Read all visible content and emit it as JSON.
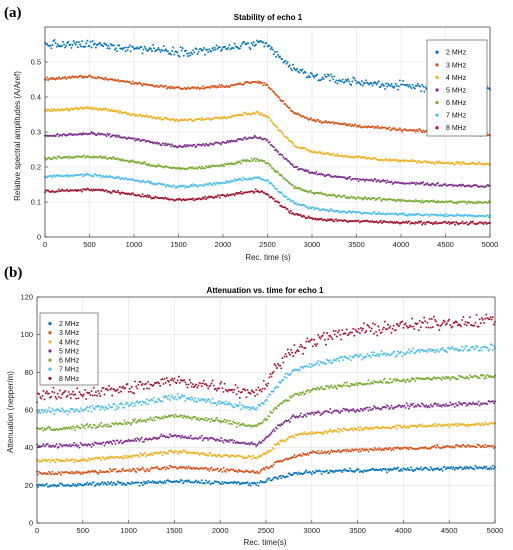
{
  "chart_data": [
    {
      "panel": "(a)",
      "type": "scatter",
      "title": "Stability of echo 1",
      "xlabel": "Rec. time (s)",
      "ylabel": "Relative spectral amplitudes (A/Aref)",
      "xlim": [
        0,
        5000
      ],
      "ylim": [
        0,
        0.6
      ],
      "xticks": [
        0,
        500,
        1000,
        1500,
        2000,
        2500,
        3000,
        3500,
        4000,
        4500,
        5000
      ],
      "yticks": [
        0,
        0.1,
        0.2,
        0.3,
        0.4,
        0.5
      ],
      "grid": true,
      "legend_position": "top-right",
      "x": [
        0,
        250,
        500,
        750,
        1000,
        1250,
        1500,
        1750,
        2000,
        2250,
        2400,
        2500,
        2650,
        2800,
        3000,
        3250,
        3500,
        3750,
        4000,
        4250,
        4500,
        4750,
        5000
      ],
      "series": [
        {
          "name": "2 MHz",
          "color": "#0072bd",
          "noise": 0.006,
          "values": [
            0.55,
            0.548,
            0.55,
            0.545,
            0.54,
            0.536,
            0.53,
            0.532,
            0.538,
            0.548,
            0.552,
            0.545,
            0.51,
            0.478,
            0.46,
            0.45,
            0.443,
            0.437,
            0.432,
            0.428,
            0.424,
            0.421,
            0.418
          ]
        },
        {
          "name": "3 MHz",
          "color": "#d95319",
          "noise": 0.002,
          "values": [
            0.452,
            0.455,
            0.458,
            0.45,
            0.44,
            0.432,
            0.425,
            0.426,
            0.43,
            0.44,
            0.443,
            0.433,
            0.392,
            0.355,
            0.335,
            0.325,
            0.318,
            0.312,
            0.306,
            0.302,
            0.298,
            0.295,
            0.292
          ]
        },
        {
          "name": "4 MHz",
          "color": "#edb120",
          "noise": 0.002,
          "values": [
            0.362,
            0.365,
            0.368,
            0.362,
            0.35,
            0.34,
            0.333,
            0.336,
            0.342,
            0.352,
            0.355,
            0.344,
            0.3,
            0.262,
            0.245,
            0.235,
            0.228,
            0.222,
            0.218,
            0.215,
            0.212,
            0.21,
            0.208
          ]
        },
        {
          "name": "5 MHz",
          "color": "#7e2f8e",
          "noise": 0.002,
          "values": [
            0.288,
            0.292,
            0.295,
            0.29,
            0.28,
            0.268,
            0.258,
            0.262,
            0.27,
            0.282,
            0.285,
            0.275,
            0.235,
            0.2,
            0.183,
            0.173,
            0.165,
            0.16,
            0.155,
            0.152,
            0.149,
            0.147,
            0.145
          ]
        },
        {
          "name": "6 MHz",
          "color": "#77ac30",
          "noise": 0.002,
          "values": [
            0.224,
            0.228,
            0.23,
            0.225,
            0.215,
            0.203,
            0.195,
            0.198,
            0.205,
            0.218,
            0.222,
            0.212,
            0.175,
            0.142,
            0.127,
            0.118,
            0.112,
            0.108,
            0.105,
            0.102,
            0.1,
            0.099,
            0.098
          ]
        },
        {
          "name": "7 MHz",
          "color": "#4dbeee",
          "noise": 0.002,
          "values": [
            0.172,
            0.176,
            0.178,
            0.172,
            0.163,
            0.152,
            0.144,
            0.147,
            0.155,
            0.166,
            0.17,
            0.16,
            0.125,
            0.096,
            0.083,
            0.075,
            0.07,
            0.067,
            0.065,
            0.063,
            0.062,
            0.061,
            0.06
          ]
        },
        {
          "name": "8 MHz",
          "color": "#a2142f",
          "noise": 0.002,
          "values": [
            0.13,
            0.133,
            0.136,
            0.13,
            0.122,
            0.112,
            0.106,
            0.11,
            0.117,
            0.128,
            0.132,
            0.122,
            0.09,
            0.065,
            0.053,
            0.048,
            0.045,
            0.043,
            0.042,
            0.041,
            0.04,
            0.04,
            0.039
          ]
        }
      ]
    },
    {
      "panel": "(b)",
      "type": "scatter",
      "title": "Attenuation vs. time for echo 1",
      "xlabel": "Rec. time(s)",
      "ylabel": "Attenuation (nepper/m)",
      "xlim": [
        0,
        5000
      ],
      "ylim": [
        0,
        120
      ],
      "xticks": [
        0,
        500,
        1000,
        1500,
        2000,
        2500,
        3000,
        3500,
        4000,
        4500,
        5000
      ],
      "yticks": [
        0,
        20,
        40,
        60,
        80,
        100,
        120
      ],
      "grid": true,
      "legend_position": "top-left",
      "x": [
        0,
        250,
        500,
        750,
        1000,
        1250,
        1500,
        1750,
        2000,
        2250,
        2400,
        2500,
        2650,
        2800,
        3000,
        3250,
        3500,
        3750,
        4000,
        4250,
        4500,
        4750,
        5000
      ],
      "series": [
        {
          "name": "2 MHz",
          "color": "#0072bd",
          "noise": 0.5,
          "values": [
            20,
            20,
            20.5,
            20.8,
            21,
            21.5,
            22,
            21.8,
            21.5,
            21,
            21,
            22,
            24.5,
            26,
            27,
            27.5,
            28,
            28.2,
            28.5,
            28.7,
            29,
            29.2,
            29.5
          ]
        },
        {
          "name": "3 MHz",
          "color": "#d95319",
          "noise": 0.5,
          "values": [
            26.5,
            26.5,
            27,
            27.5,
            28,
            28.5,
            29.5,
            29,
            28.5,
            27.5,
            27,
            29,
            33,
            35.5,
            37,
            38,
            38.8,
            39.3,
            39.7,
            40,
            40.5,
            40.8,
            41
          ]
        },
        {
          "name": "4 MHz",
          "color": "#edb120",
          "noise": 0.5,
          "values": [
            33,
            33,
            33.5,
            34.5,
            35.5,
            36.5,
            38,
            37,
            36,
            35,
            34.5,
            37,
            43,
            46,
            48,
            49,
            50,
            50.7,
            51.2,
            51.7,
            52,
            52.4,
            53
          ]
        },
        {
          "name": "5 MHz",
          "color": "#7e2f8e",
          "noise": 0.6,
          "values": [
            41,
            41,
            41.5,
            42.5,
            43.5,
            45,
            46.5,
            45,
            44,
            42.5,
            42,
            45,
            52,
            56,
            58,
            59.5,
            60.5,
            61.3,
            62,
            62.5,
            63,
            63.5,
            64
          ]
        },
        {
          "name": "6 MHz",
          "color": "#77ac30",
          "noise": 0.6,
          "values": [
            50,
            50,
            51,
            52,
            53.5,
            55,
            57,
            55.5,
            54,
            52,
            51.5,
            55,
            63,
            67.5,
            70.5,
            72.5,
            74,
            75,
            75.8,
            76.5,
            77,
            77.5,
            78
          ]
        },
        {
          "name": "7 MHz",
          "color": "#4dbeee",
          "noise": 0.8,
          "values": [
            59,
            59.5,
            60.5,
            61.5,
            63,
            65,
            67,
            65.5,
            64,
            61.5,
            61,
            65,
            75,
            80.5,
            84,
            86.5,
            88.5,
            89.7,
            90.5,
            91.3,
            92,
            92.7,
            93.5
          ]
        },
        {
          "name": "8 MHz",
          "color": "#a2142f",
          "noise": 1.6,
          "values": [
            67.5,
            68,
            69,
            70,
            71.5,
            73.5,
            75.5,
            74,
            72.5,
            70,
            69.5,
            74,
            85,
            92,
            96.5,
            99.5,
            102,
            103.5,
            104.5,
            105.5,
            106.5,
            107,
            108
          ]
        }
      ]
    }
  ]
}
